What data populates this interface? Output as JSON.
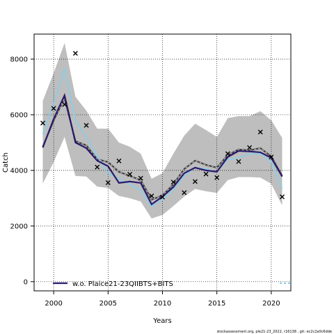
{
  "chart_data": {
    "type": "line",
    "xlabel": "Years",
    "ylabel": "Catch",
    "xlim": [
      1998.2,
      2021.8
    ],
    "ylim": [
      -330,
      8900
    ],
    "x_ticks": [
      2000,
      2005,
      2010,
      2015,
      2020
    ],
    "y_ticks": [
      0,
      2000,
      4000,
      6000,
      8000
    ],
    "grid": "dotted at ticks",
    "legend_position": "bottom-left",
    "years": [
      1999,
      2000,
      2001,
      2002,
      2003,
      2004,
      2005,
      2006,
      2007,
      2008,
      2009,
      2010,
      2011,
      2012,
      2013,
      2014,
      2015,
      2016,
      2017,
      2018,
      2019,
      2020,
      2021
    ],
    "band": {
      "upper": [
        6500,
        7500,
        8580,
        6650,
        6150,
        5500,
        5500,
        5000,
        4850,
        4600,
        3700,
        3900,
        4600,
        5250,
        5680,
        5450,
        5200,
        5880,
        5950,
        5950,
        6130,
        5800,
        5170
      ],
      "lower": [
        3530,
        4300,
        5200,
        3800,
        3780,
        3420,
        3370,
        3080,
        3000,
        2880,
        2270,
        2400,
        2720,
        3060,
        3330,
        3250,
        3190,
        3650,
        3760,
        3760,
        3740,
        3520,
        2740
      ]
    },
    "series": [
      {
        "name": "w.o. Plaice21-23QIIBTS+BITS",
        "color": "#2b1a6b",
        "values": [
          4820,
          5850,
          6700,
          5000,
          4800,
          4350,
          4150,
          3550,
          3600,
          3550,
          2780,
          3060,
          3400,
          3900,
          4100,
          4000,
          3950,
          4480,
          4700,
          4680,
          4650,
          4450,
          3780
        ]
      },
      {
        "color": "#3c3c3c",
        "values": [
          4850,
          5800,
          6600,
          5050,
          4900,
          4400,
          4300,
          3950,
          3800,
          3650,
          2950,
          3100,
          3500,
          4050,
          4350,
          4200,
          4100,
          4550,
          4750,
          4720,
          4800,
          4500,
          3800
        ]
      },
      {
        "color": "#87ceeb",
        "values": [
          5300,
          6400,
          7650,
          5800,
          5200,
          4500,
          3900,
          3700,
          3500,
          3300,
          2700,
          2950,
          3300,
          3800,
          4100,
          4050,
          3950,
          4400,
          4450,
          4600,
          4600,
          4300,
          3350
        ]
      }
    ],
    "observed": {
      "marker": "x",
      "years": [
        1999,
        2000,
        2001,
        2002,
        2003,
        2004,
        2005,
        2006,
        2007,
        2008,
        2009,
        2010,
        2011,
        2012,
        2013,
        2014,
        2015,
        2016,
        2017,
        2018,
        2019,
        2020,
        2021
      ],
      "values": [
        5700,
        6230,
        6370,
        8210,
        5620,
        4120,
        3560,
        4340,
        3860,
        3720,
        3080,
        3040,
        3580,
        3200,
        3600,
        3870,
        3740,
        4600,
        4320,
        4820,
        5380,
        4480,
        3050
      ]
    },
    "legend": {
      "label": "w.o. Plaice21-23QIIBTS+BITS"
    },
    "footer": "stockassessment.org, ple21-23_2022, r16138 , git: ec2c2a0c6dde"
  }
}
